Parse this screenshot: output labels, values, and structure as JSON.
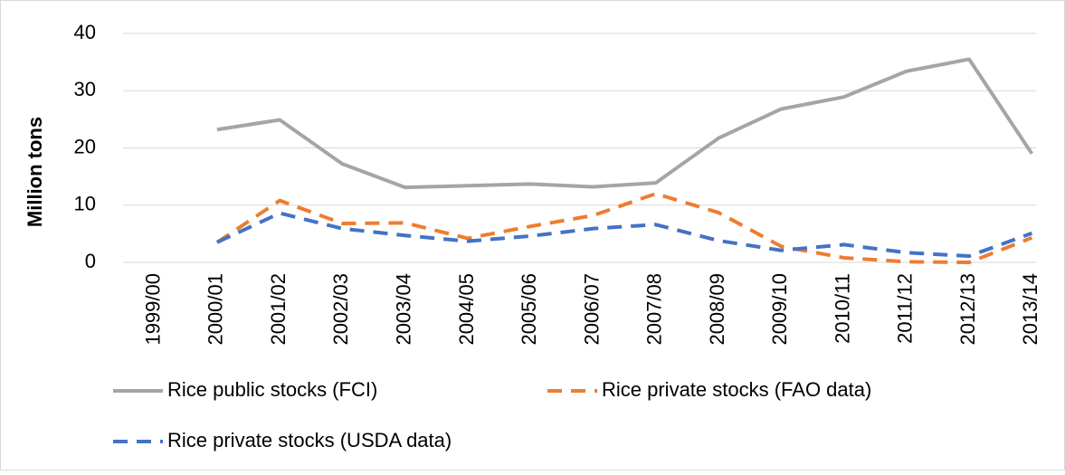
{
  "chart_data": {
    "type": "line",
    "ylabel": "Million tons",
    "categories": [
      "1999/00",
      "2000/01",
      "2001/02",
      "2002/03",
      "2003/04",
      "2004/05",
      "2005/06",
      "2006/07",
      "2007/08",
      "2008/09",
      "2009/10",
      "2010/11",
      "2011/12",
      "2012/13",
      "2013/14"
    ],
    "series": [
      {
        "name": "Rice public stocks (FCI)",
        "color": "#a5a5a5",
        "line_style": "solid",
        "values": [
          null,
          23.2,
          24.9,
          17.2,
          13.1,
          13.4,
          13.7,
          13.2,
          13.9,
          21.7,
          26.8,
          28.9,
          33.4,
          35.5,
          19.0
        ]
      },
      {
        "name": "Rice private stocks (FAO data)",
        "color": "#ed7d31",
        "line_style": "dashed",
        "values": [
          null,
          3.5,
          10.8,
          6.8,
          6.9,
          4.2,
          6.3,
          8.2,
          12.0,
          8.7,
          2.8,
          0.8,
          0.1,
          0.0,
          4.3
        ]
      },
      {
        "name": "Rice private stocks (USDA data)",
        "color": "#4472c4",
        "line_style": "dashed",
        "values": [
          null,
          3.5,
          8.6,
          5.9,
          4.7,
          3.7,
          4.6,
          5.9,
          6.6,
          3.8,
          2.1,
          3.1,
          1.7,
          1.1,
          5.1
        ]
      }
    ],
    "ylim": [
      0,
      40
    ],
    "yticks": [
      0,
      10,
      20,
      30,
      40
    ],
    "grid": true,
    "legend": "bottom"
  }
}
